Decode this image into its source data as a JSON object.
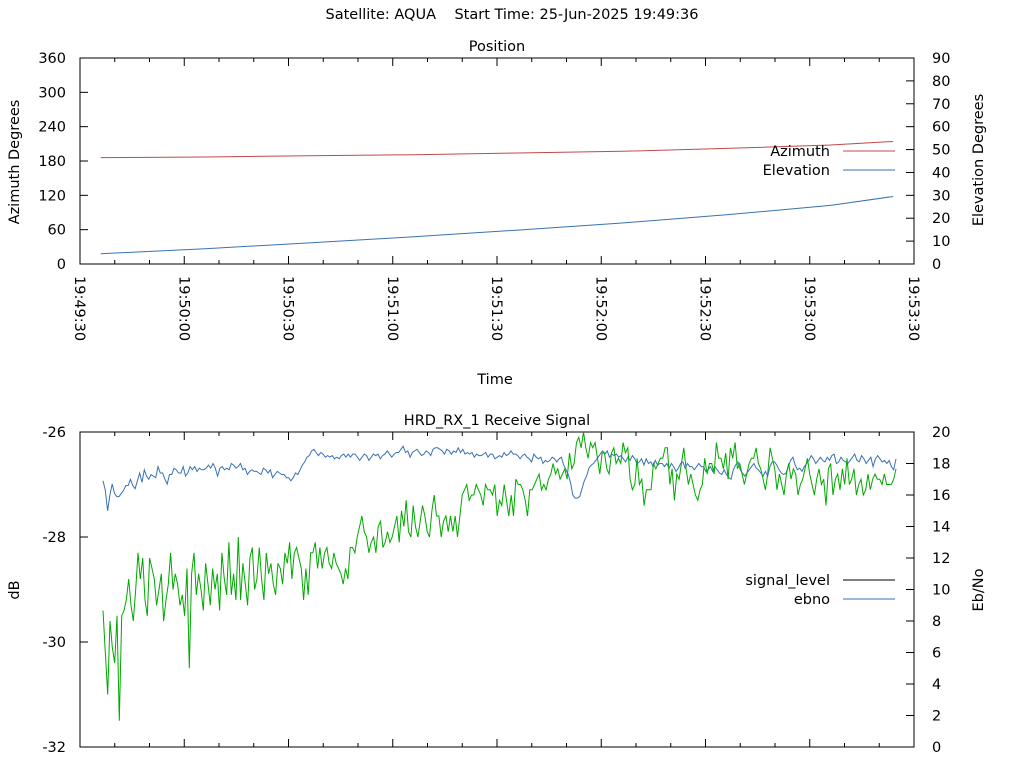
{
  "header": {
    "satellite": "Satellite: AQUA",
    "start_time": "Start Time: 25-Jun-2025 19:49:36"
  },
  "colors": {
    "azimuth": "#c0484a",
    "elevation": "#3a72b2",
    "signal_level": "#00a800",
    "ebno": "#3a72b2",
    "legend_signal_level": "#000000",
    "axis": "#000000"
  },
  "chart_data": [
    {
      "type": "line",
      "title": "Position",
      "xlabel": "Time",
      "ylabel": "Azimuth Degrees",
      "y2label": "Elevation Degrees",
      "xlim": [
        "19:49:30",
        "19:53:30"
      ],
      "ylim": [
        0,
        360
      ],
      "y2lim": [
        0,
        90
      ],
      "x_ticks": [
        "19:49:30",
        "19:50:00",
        "19:50:30",
        "19:51:00",
        "19:51:30",
        "19:52:00",
        "19:52:30",
        "19:53:00",
        "19:53:30"
      ],
      "y_ticks": [
        "0",
        "60",
        "120",
        "180",
        "240",
        "300",
        "360"
      ],
      "y2_ticks": [
        "0",
        "10",
        "20",
        "30",
        "40",
        "50",
        "60",
        "70",
        "80",
        "90"
      ],
      "legend_position": "right",
      "grid": false,
      "series": [
        {
          "name": "Azimuth",
          "axis": "y",
          "x": [
            "19:49:36",
            "19:50:06",
            "19:50:36",
            "19:51:06",
            "19:51:36",
            "19:52:06",
            "19:52:36",
            "19:53:06",
            "19:53:24"
          ],
          "values": [
            186,
            187,
            189,
            191,
            194,
            197,
            202,
            208,
            214
          ]
        },
        {
          "name": "Elevation",
          "axis": "y2",
          "x": [
            "19:49:36",
            "19:50:06",
            "19:50:36",
            "19:51:06",
            "19:51:36",
            "19:52:06",
            "19:52:36",
            "19:53:06",
            "19:53:24"
          ],
          "values": [
            4.5,
            6.7,
            9.2,
            11.9,
            14.8,
            17.9,
            21.5,
            25.6,
            29.5
          ]
        }
      ]
    },
    {
      "type": "line",
      "title": "HRD_RX_1 Receive Signal",
      "ylabel": "dB",
      "y2label": "Eb/No",
      "ylim": [
        -32,
        -26
      ],
      "y2lim": [
        0,
        20
      ],
      "y_ticks": [
        "-26",
        "-28",
        "-30",
        "-32"
      ],
      "y2_ticks": [
        "20",
        "18",
        "16",
        "14",
        "12",
        "10",
        "8",
        "6",
        "4",
        "2",
        "0"
      ],
      "legend_position": "right",
      "grid": false,
      "series": [
        {
          "name": "signal_level",
          "axis": "y",
          "values": [
            -29.4,
            -30.2,
            -31.0,
            -29.6,
            -30.1,
            -30.4,
            -29.5,
            -31.5,
            -29.5,
            -29.4,
            -29.2,
            -28.8,
            -29.3,
            -29.6,
            -29.0,
            -28.3,
            -28.8,
            -28.4,
            -29.2,
            -29.5,
            -28.4,
            -28.6,
            -28.8,
            -29.3,
            -29.0,
            -28.7,
            -29.6,
            -29.2,
            -28.9,
            -28.3,
            -29.0,
            -28.7,
            -28.9,
            -29.3,
            -29.1,
            -29.5,
            -28.6,
            -30.5,
            -28.7,
            -28.3,
            -29.1,
            -28.7,
            -29.0,
            -29.4,
            -28.5,
            -28.9,
            -29.3,
            -28.6,
            -29.0,
            -28.7,
            -29.4,
            -28.3,
            -28.8,
            -29.1,
            -28.1,
            -29.1,
            -28.7,
            -29.2,
            -28.0,
            -29.2,
            -28.5,
            -28.9,
            -29.3,
            -28.4,
            -28.2,
            -29.0,
            -28.8,
            -28.2,
            -28.8,
            -29.2,
            -28.3,
            -28.7,
            -28.5,
            -28.9,
            -29.1,
            -28.5,
            -28.6,
            -28.9,
            -28.3,
            -28.5,
            -28.1,
            -28.8,
            -28.3,
            -28.2,
            -28.4,
            -28.6,
            -29.2,
            -28.6,
            -29.1,
            -28.3,
            -28.3,
            -28.1,
            -28.6,
            -28.2,
            -28.6,
            -28.3,
            -28.2,
            -28.5,
            -28.6,
            -28.3,
            -28.5,
            -28.6,
            -28.7,
            -28.9,
            -28.6,
            -28.8,
            -28.2,
            -28.2,
            -28.3,
            -28.0,
            -27.8,
            -27.6,
            -27.9,
            -28.0,
            -28.3,
            -28.1,
            -28.0,
            -28.3,
            -27.8,
            -27.7,
            -28.2,
            -28.1,
            -27.9,
            -28.1,
            -28.0,
            -27.8,
            -27.6,
            -28.1,
            -27.5,
            -27.8,
            -27.3,
            -27.9,
            -28.0,
            -27.4,
            -27.8,
            -28.0,
            -27.7,
            -27.4,
            -27.6,
            -27.9,
            -28.0,
            -27.5,
            -27.2,
            -27.6,
            -27.6,
            -28.0,
            -27.7,
            -27.6,
            -27.9,
            -27.6,
            -27.9,
            -27.6,
            -28.0,
            -27.6,
            -27.2,
            -27.1,
            -27.0,
            -27.3,
            -27.2,
            -27.2,
            -27.0,
            -27.1,
            -27.2,
            -27.4,
            -27.0,
            -27.1,
            -27.1,
            -27.2,
            -27.0,
            -27.6,
            -27.3,
            -27.4,
            -27.0,
            -27.3,
            -27.6,
            -27.2,
            -27.6,
            -26.9,
            -27.0,
            -27.0,
            -27.1,
            -27.3,
            -27.6,
            -27.1,
            -27.1,
            -27.0,
            -26.9,
            -26.8,
            -27.1,
            -27.0,
            -27.1,
            -26.9,
            -26.8,
            -26.6,
            -26.8,
            -26.7,
            -26.9,
            -26.8,
            -26.7,
            -26.9,
            -26.4,
            -26.7,
            -26.6,
            -26.2,
            -26.1,
            -26.3,
            -26.0,
            -26.3,
            -26.5,
            -26.2,
            -26.3,
            -26.2,
            -26.5,
            -26.8,
            -26.4,
            -26.4,
            -26.7,
            -26.8,
            -26.4,
            -26.3,
            -26.6,
            -26.5,
            -26.6,
            -26.2,
            -26.4,
            -26.3,
            -26.9,
            -27.1,
            -27.0,
            -26.5,
            -27.0,
            -26.9,
            -27.4,
            -27.1,
            -27.1,
            -27.1,
            -26.6,
            -26.7,
            -26.6,
            -26.5,
            -26.5,
            -26.3,
            -26.3,
            -27.0,
            -26.7,
            -27.3,
            -26.8,
            -26.9,
            -26.6,
            -26.3,
            -26.7,
            -27.0,
            -26.8,
            -27.0,
            -27.2,
            -27.3,
            -27.1,
            -27.0,
            -26.5,
            -26.8,
            -26.6,
            -26.6,
            -26.8,
            -26.2,
            -26.5,
            -26.5,
            -26.7,
            -26.4,
            -26.9,
            -26.3,
            -26.5,
            -26.2,
            -26.7,
            -26.6,
            -26.8,
            -27.0,
            -26.8,
            -26.6,
            -26.5,
            -26.5,
            -26.3,
            -26.6,
            -26.7,
            -26.9,
            -27.1,
            -26.8,
            -26.3,
            -26.5,
            -26.7,
            -27.1,
            -26.8,
            -27.0,
            -27.2,
            -26.8,
            -26.6,
            -26.9,
            -26.7,
            -26.8,
            -27.2,
            -27.0,
            -26.9,
            -26.7,
            -26.5,
            -26.8,
            -27.0,
            -27.2,
            -26.9,
            -26.7,
            -27.0,
            -26.9,
            -27.4,
            -26.7,
            -26.6,
            -27.2,
            -26.9,
            -26.8,
            -27.1,
            -26.7,
            -27.0,
            -26.5,
            -27.0,
            -26.9,
            -26.7,
            -27.2,
            -27.0,
            -26.9,
            -27.2,
            -27.1,
            -26.8,
            -27.1,
            -26.9,
            -26.8,
            -26.9,
            -26.9,
            -27.0,
            -26.8,
            -27.0,
            -27.0,
            -27.0,
            -26.9,
            -26.7
          ]
        },
        {
          "name": "ebno",
          "axis": "y2",
          "values": [
            16.9,
            16.3,
            15.0,
            16.0,
            16.7,
            16.1,
            15.9,
            15.9,
            16.1,
            16.3,
            16.6,
            16.6,
            17.0,
            16.6,
            16.4,
            16.9,
            17.4,
            16.8,
            17.6,
            17.2,
            17.0,
            17.3,
            17.2,
            17.1,
            17.8,
            17.4,
            17.4,
            17.0,
            16.7,
            17.3,
            17.3,
            17.7,
            17.6,
            17.4,
            17.4,
            17.8,
            17.2,
            17.4,
            17.8,
            17.6,
            17.8,
            17.5,
            17.7,
            17.6,
            17.6,
            17.7,
            17.9,
            17.7,
            18.0,
            17.7,
            17.2,
            17.7,
            17.8,
            17.6,
            17.7,
            17.6,
            18.0,
            17.9,
            17.7,
            17.8,
            18.0,
            17.6,
            17.7,
            17.3,
            17.5,
            17.6,
            17.5,
            17.5,
            17.4,
            17.3,
            17.7,
            17.6,
            17.4,
            17.6,
            17.1,
            17.3,
            17.5,
            17.4,
            17.3,
            17.3,
            17.1,
            17.1,
            16.9,
            17.1,
            17.4,
            17.3,
            17.6,
            17.9,
            18.1,
            18.4,
            18.5,
            18.8,
            18.9,
            18.7,
            18.5,
            18.7,
            18.6,
            18.4,
            18.5,
            18.4,
            18.5,
            18.3,
            18.4,
            18.3,
            18.5,
            18.6,
            18.4,
            18.6,
            18.4,
            18.6,
            18.6,
            18.4,
            18.2,
            18.4,
            18.6,
            18.5,
            18.2,
            18.4,
            18.6,
            18.5,
            18.6,
            18.3,
            18.5,
            18.6,
            18.8,
            18.6,
            18.4,
            18.6,
            18.7,
            18.7,
            18.9,
            19.1,
            18.7,
            18.8,
            18.4,
            18.7,
            18.8,
            18.9,
            18.7,
            18.5,
            18.6,
            18.8,
            18.7,
            18.5,
            18.9,
            19.0,
            19.0,
            18.9,
            18.8,
            18.6,
            18.9,
            18.8,
            18.6,
            18.8,
            18.7,
            19.0,
            18.7,
            18.9,
            18.6,
            18.7,
            18.6,
            18.7,
            18.4,
            18.6,
            18.5,
            18.5,
            18.6,
            18.7,
            18.4,
            18.6,
            18.6,
            18.3,
            18.4,
            18.5,
            18.4,
            18.7,
            18.5,
            18.6,
            18.8,
            18.6,
            18.6,
            18.5,
            18.3,
            18.5,
            18.6,
            18.4,
            18.3,
            18.1,
            18.6,
            18.4,
            18.3,
            18.4,
            18.0,
            18.2,
            18.1,
            18.2,
            18.4,
            18.3,
            18.1,
            18.3,
            18.4,
            17.9,
            17.6,
            17.3,
            16.8,
            16.0,
            15.8,
            15.8,
            15.9,
            16.4,
            16.9,
            17.2,
            17.7,
            17.9,
            18.0,
            18.2,
            18.4,
            18.6,
            18.8,
            18.6,
            18.8,
            18.4,
            18.6,
            18.5,
            18.6,
            18.4,
            18.5,
            18.3,
            18.1,
            18.4,
            18.2,
            18.5,
            18.3,
            18.0,
            18.1,
            18.3,
            17.9,
            18.3,
            18.0,
            18.1,
            17.8,
            18.2,
            17.9,
            18.0,
            18.0,
            17.8,
            18.0,
            17.7,
            18.0,
            17.8,
            17.5,
            17.7,
            18.0,
            18.1,
            17.7,
            18.0,
            17.8,
            17.8,
            17.6,
            17.8,
            18.0,
            17.8,
            17.8,
            17.5,
            17.6,
            17.8,
            17.5,
            17.8,
            17.6,
            17.4,
            17.3,
            17.6,
            17.3,
            17.1,
            17.0,
            17.6,
            17.9,
            18.1,
            17.6,
            17.4,
            17.2,
            17.4,
            17.6,
            17.8,
            18.0,
            17.7,
            17.6,
            17.4,
            17.2,
            17.5,
            17.2,
            17.8,
            18.1,
            18.1,
            17.9,
            17.6,
            17.4,
            17.3,
            17.4,
            17.8,
            18.2,
            18.4,
            17.9,
            17.6,
            17.7,
            17.5,
            17.8,
            18.0,
            18.2,
            18.5,
            18.3,
            18.0,
            18.2,
            18.4,
            18.2,
            18.1,
            18.4,
            18.2,
            18.5,
            18.6,
            18.0,
            18.1,
            18.4,
            18.2,
            18.1,
            18.0,
            18.2,
            18.4,
            18.6,
            18.2,
            18.1,
            18.5,
            18.3,
            18.0,
            18.2,
            18.4,
            17.8,
            18.3,
            18.5,
            18.3,
            18.1,
            18.2,
            18.0,
            18.2,
            17.8,
            17.6,
            18.3
          ]
        }
      ]
    }
  ]
}
